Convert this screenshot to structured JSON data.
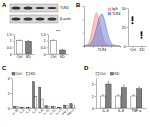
{
  "chart_data": [
    {
      "type": "bar",
      "title": "A",
      "categories": [
        "Ctrl",
        "KD"
      ],
      "values": [
        1,
        0.95
      ],
      "error": [
        0.06,
        0.08
      ],
      "colors": [
        "#ffffff",
        "#7f7f7f"
      ],
      "ylim": [
        0,
        1.5
      ],
      "yticks": [
        0,
        0.5,
        1,
        1.5
      ]
    },
    {
      "type": "bar",
      "categories": [
        "Ctrl",
        "KD"
      ],
      "values": [
        1,
        0.3
      ],
      "error": [
        0.07,
        0.05
      ],
      "colors": [
        "#ffffff",
        "#7f7f7f"
      ],
      "ylim": [
        0,
        1.5
      ],
      "yticks": [
        0,
        0.5,
        1,
        1.5
      ],
      "annotations": [
        "***"
      ]
    },
    {
      "type": "line",
      "title": "B",
      "xlabel": "TLR4",
      "x": [
        0,
        5,
        10,
        15,
        20,
        25,
        30,
        35,
        40,
        45,
        50,
        55,
        60,
        65,
        70,
        75,
        80,
        85,
        90,
        95,
        100
      ],
      "series": [
        {
          "name": "IgG",
          "color": "#f08080",
          "values": [
            0,
            1,
            3,
            8,
            18,
            32,
            45,
            50,
            42,
            30,
            18,
            9,
            4,
            2,
            1,
            0,
            0,
            0,
            0,
            0,
            0
          ]
        },
        {
          "name": "TLR4",
          "color": "#4a6fd8",
          "values": [
            0,
            0,
            1,
            2,
            5,
            10,
            18,
            28,
            38,
            46,
            48,
            42,
            32,
            20,
            11,
            5,
            2,
            1,
            0,
            0,
            0
          ]
        }
      ],
      "xlim": [
        0,
        100
      ],
      "xticks": [
        0,
        25,
        50,
        75,
        100
      ],
      "ylim": [
        0,
        60
      ],
      "yticks": [
        0,
        20,
        40,
        60
      ],
      "tick_labels": false,
      "legend": "upper right"
    },
    {
      "type": "scatter",
      "x": [
        1,
        1,
        1,
        1,
        2,
        2,
        2,
        2
      ],
      "y": [
        34,
        38,
        30,
        36,
        14,
        18,
        11,
        16
      ],
      "xlim": [
        0.5,
        2.5
      ],
      "xticks": [
        {
          "value": 1,
          "label": "Ctrl"
        },
        {
          "value": 2,
          "label": "KD"
        }
      ],
      "ylim": [
        0,
        50
      ],
      "yticks": [
        0,
        25,
        50
      ],
      "color": "#000000",
      "marker": "circle"
    },
    {
      "type": "bar",
      "title": "C",
      "categories": [
        "IL-1β",
        "IL-2",
        "IL-4",
        "IL-6",
        "IL-8",
        "IL-10",
        "IL-12",
        "IL-17",
        "IFN-γ",
        "TNF-α"
      ],
      "series": [
        {
          "name": "Ctrl",
          "color": "#7f7f7f",
          "values": [
            0.2,
            0.1,
            0.1,
            3.5,
            2.8,
            0.3,
            0.2,
            0.1,
            0.4,
            0.6
          ]
        },
        {
          "name": "KD",
          "color": "#ffffff",
          "values": [
            0.2,
            0.1,
            0.1,
            1.5,
            1.2,
            0.2,
            0.2,
            0.1,
            0.3,
            0.4
          ]
        }
      ],
      "ylim": [
        0,
        4
      ],
      "yticks": [
        0,
        2,
        4
      ],
      "legend": "top"
    },
    {
      "type": "bar",
      "title": "D",
      "categories": [
        "IL-6",
        "IL-8",
        "TNF-α"
      ],
      "series": [
        {
          "name": "Ctrl",
          "color": "#ffffff",
          "values": [
            1,
            1,
            1
          ],
          "error": [
            0.1,
            0.1,
            0.1
          ]
        },
        {
          "name": "KD",
          "color": "#7f7f7f",
          "values": [
            2,
            1.7,
            1.6
          ],
          "error": [
            0.2,
            0.2,
            0.15
          ]
        }
      ],
      "ylim": [
        0,
        2.5
      ],
      "yticks": [
        0,
        1,
        2
      ],
      "legend": "top"
    }
  ],
  "blots": [
    {
      "label": "TLR4"
    },
    {
      "label": "β-actin"
    }
  ]
}
